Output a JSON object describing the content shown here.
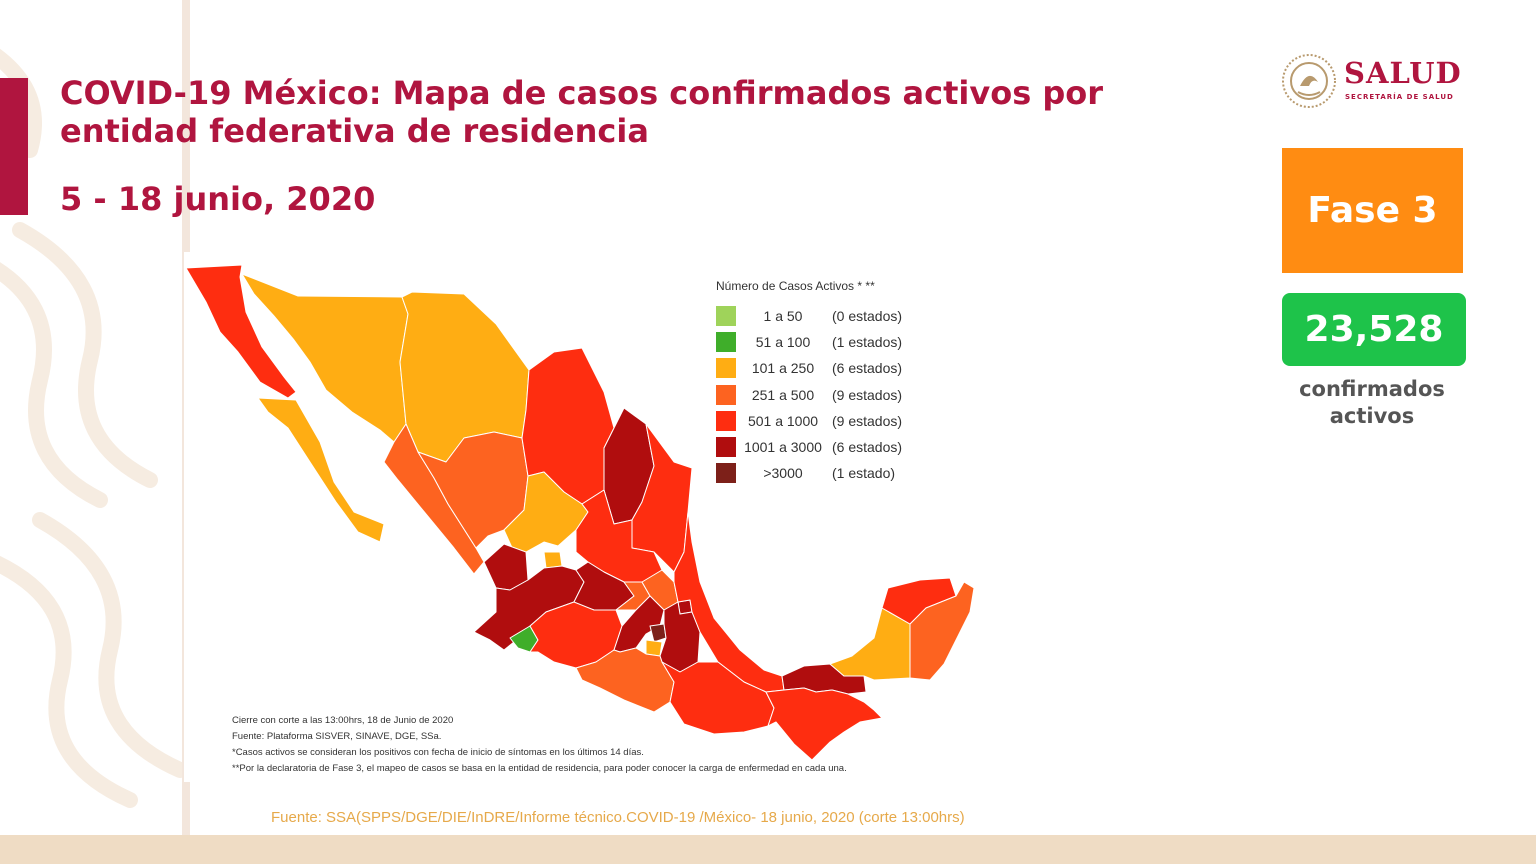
{
  "colors": {
    "brand": "#b0153f",
    "phase": "#ff8c12",
    "count": "#1ec34a",
    "source_text": "#e6a94a",
    "band": "#efdcc4",
    "pattern": "#f6ece1",
    "border": "#f3e6dc"
  },
  "header": {
    "title": "COVID-19 México: Mapa de casos confirmados activos por entidad federativa de residencia",
    "date": "5 - 18 junio, 2020"
  },
  "logo": {
    "name": "SALUD",
    "subtitle": "SECRETARÍA DE SALUD",
    "emblem_icon": "coat-of-arms-icon"
  },
  "sidebar": {
    "phase": "Fase 3",
    "count": "23,528",
    "count_label": "confirmados activos"
  },
  "legend": {
    "title": "Número de Casos Activos * **",
    "items": [
      {
        "range": "1 a 50",
        "states": "(0 estados)",
        "color": "#9fd35a"
      },
      {
        "range": "51 a 100",
        "states": "(1 estados)",
        "color": "#3fae2a"
      },
      {
        "range": "101 a 250",
        "states": "(6 estados)",
        "color": "#ffad13"
      },
      {
        "range": "251 a 500",
        "states": "(9 estados)",
        "color": "#fd6320"
      },
      {
        "range": "501 a 1000",
        "states": "(9 estados)",
        "color": "#fe2d10"
      },
      {
        "range": "1001 a 3000",
        "states": "(6 estados)",
        "color": "#b00d0e"
      },
      {
        "range": ">3000",
        "states": "(1 estado)",
        "color": "#7d2019"
      }
    ]
  },
  "notes": [
    "Cierre con corte a las 13:00hrs, 18 de Junio de 2020",
    "Fuente: Plataforma SISVER, SINAVE, DGE, SSa.",
    "*Casos activos se consideran los positivos con fecha de inicio de síntomas en los últimos 14 días.",
    "**Por la declaratoria de Fase 3, el mapeo de casos se basa en la entidad de residencia, para poder conocer la carga de enfermedad en cada una."
  ],
  "source": "Fuente: SSA(SPPS/DGE/DIE/InDRE/Informe técnico.COVID-19 /México- 18 junio, 2020 (corte 13:00hrs)"
}
